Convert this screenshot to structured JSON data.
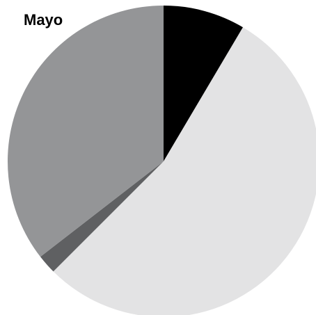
{
  "chart_data": {
    "type": "pie",
    "title": "Mayo",
    "categories": [
      null,
      null,
      null,
      null
    ],
    "values": [
      8.5,
      54,
      2,
      35.5
    ],
    "colors": [
      "#000000",
      "#e3e3e4",
      "#5f6062",
      "#949597"
    ],
    "start_angle": 0,
    "direction": "clockwise"
  }
}
